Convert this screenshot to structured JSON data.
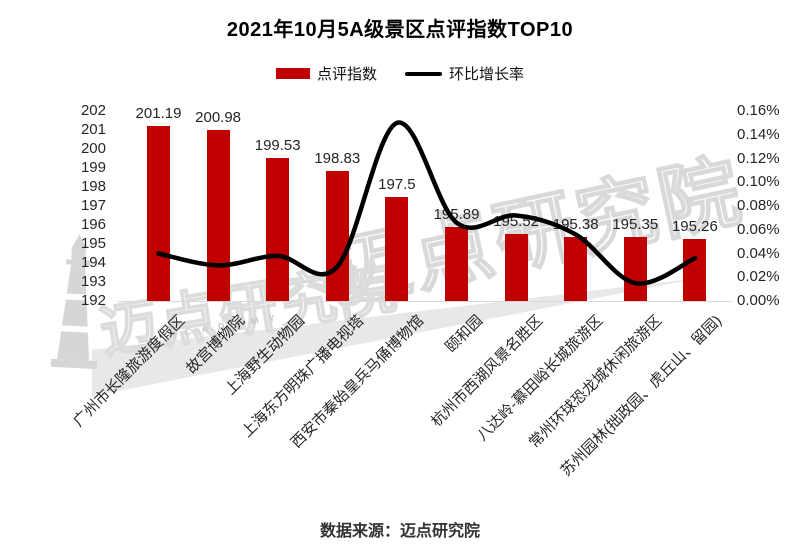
{
  "title": "2021年10月5A级景区点评指数TOP10",
  "legend": [
    {
      "label": "点评指数",
      "color": "#C00000",
      "swatch": "bar"
    },
    {
      "label": "环比增长率",
      "color": "#000000",
      "swatch": "line"
    }
  ],
  "footer": "数据来源：迈点研究院",
  "watermark": {
    "text": "迈点研究院",
    "letters": "A C A D E M Y",
    "icon": "lighthouse-icon"
  },
  "axes": {
    "left_ticks": [
      "202",
      "201",
      "200",
      "199",
      "198",
      "197",
      "196",
      "195",
      "194",
      "193",
      "192"
    ],
    "right_ticks": [
      "0.16%",
      "0.14%",
      "0.12%",
      "0.10%",
      "0.08%",
      "0.06%",
      "0.04%",
      "0.02%",
      "0.00%"
    ]
  },
  "chart_data": {
    "type": "bar+line",
    "title": "2021年10月5A级景区点评指数TOP10",
    "source": "数据来源：迈点研究院",
    "legend_position": "top",
    "grid": false,
    "categories": [
      "广州市长隆旅游度假区",
      "故宫博物院",
      "上海野生动物园",
      "上海东方明珠广播电视塔",
      "西安市秦始皇兵马俑博物馆",
      "颐和园",
      "杭州市西湖风景名胜区",
      "八达岭-慕田峪长城旅游区",
      "常州环球恐龙城休闲旅游区",
      "苏州园林(拙政园、虎丘山、留园)"
    ],
    "series": [
      {
        "name": "点评指数",
        "type": "bar",
        "color": "#C00000",
        "axis": "left",
        "values": [
          201.19,
          200.98,
          199.53,
          198.83,
          197.5,
          195.89,
          195.52,
          195.38,
          195.35,
          195.26
        ],
        "labels": [
          "201.19",
          "200.98",
          "199.53",
          "198.83",
          "197.5",
          "195.89",
          "195.52",
          "195.38",
          "195.35",
          "195.26"
        ]
      },
      {
        "name": "环比增长率",
        "type": "line",
        "color": "#000000",
        "axis": "right",
        "unit": "%",
        "values": [
          0.04,
          0.03,
          0.038,
          0.029,
          0.15,
          0.066,
          0.072,
          0.056,
          0.015,
          0.036
        ]
      }
    ],
    "left_axis": {
      "min": 192,
      "max": 202,
      "step": 1
    },
    "right_axis": {
      "min": 0,
      "max": 0.16,
      "step": 0.02,
      "format": "0.00%"
    }
  }
}
